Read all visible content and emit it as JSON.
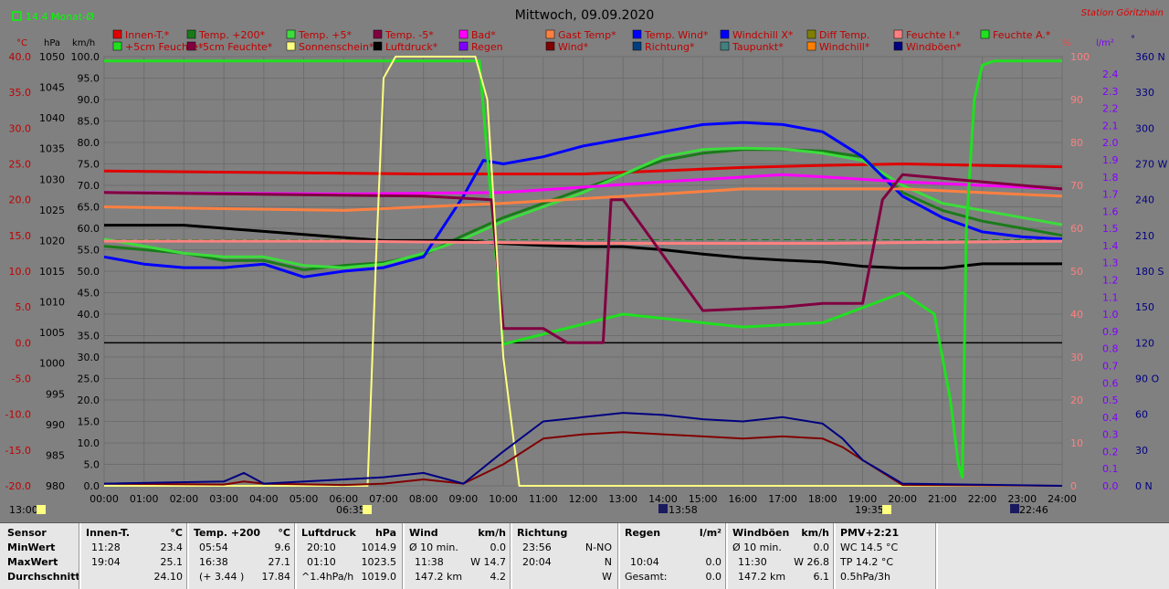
{
  "header": {
    "left_label": "14.4 Monat-Ø",
    "title": "Mittwoch, 09.09.2020",
    "station": "Station Göritzhain"
  },
  "legend": [
    {
      "label": "Innen-T.*",
      "color": "#e00000"
    },
    {
      "label": "Temp. +200*",
      "color": "#1a7a1a"
    },
    {
      "label": "Temp. +5*",
      "color": "#3cdc3c"
    },
    {
      "label": "Temp. -5*",
      "color": "#800040"
    },
    {
      "label": "Bad*",
      "color": "#ff00ff"
    },
    {
      "label": "Gast Temp*",
      "color": "#ff8040"
    },
    {
      "label": "Temp. Wind*",
      "color": "#0000ff"
    },
    {
      "label": "Windchill X*",
      "color": "#0000ff"
    },
    {
      "label": "Diff Temp.",
      "color": "#808000"
    },
    {
      "label": "Feuchte I.*",
      "color": "#ff8080"
    },
    {
      "label": "Feuchte A.*",
      "color": "#20e020"
    },
    {
      "label": "+5cm Feuchte*",
      "color": "#20e020"
    },
    {
      "label": "-5cm Feuchte*",
      "color": "#800040"
    },
    {
      "label": "Sonnenschein*",
      "color": "#ffff80"
    },
    {
      "label": "Luftdruck*",
      "color": "#000000"
    },
    {
      "label": "Regen",
      "color": "#8000ff"
    },
    {
      "label": "Wind*",
      "color": "#800000"
    },
    {
      "label": "Richtung*",
      "color": "#004080"
    },
    {
      "label": "Taupunkt*",
      "color": "#408080"
    },
    {
      "label": "Windchill*",
      "color": "#ff8000"
    },
    {
      "label": "Windböen*",
      "color": "#000080"
    }
  ],
  "axis_units": {
    "temp": "°C",
    "press": "hPa",
    "wind": "km/h",
    "hum": "%",
    "rain": "l/m²",
    "dir": "°"
  },
  "axis_ticks": {
    "temp": [
      "40.0",
      "35.0",
      "30.0",
      "25.0",
      "20.0",
      "15.0",
      "10.0",
      "5.0",
      "0.0",
      "-5.0",
      "-10.0",
      "-15.0",
      "-20.0"
    ],
    "press": [
      "1050",
      "1045",
      "1040",
      "1035",
      "1030",
      "1025",
      "1020",
      "1015",
      "1010",
      "1005",
      "1000",
      "995",
      "990",
      "985",
      "980"
    ],
    "wind": [
      "100.0",
      "95.0",
      "90.0",
      "85.0",
      "80.0",
      "75.0",
      "70.0",
      "65.0",
      "60.0",
      "55.0",
      "50.0",
      "45.0",
      "40.0",
      "35.0",
      "30.0",
      "25.0",
      "20.0",
      "15.0",
      "10.0",
      "5.0",
      "0.0"
    ],
    "hum": [
      "100",
      "90",
      "80",
      "70",
      "60",
      "50",
      "40",
      "30",
      "20",
      "10",
      "0"
    ],
    "rain": [
      "2.4",
      "2.3",
      "2.2",
      "2.1",
      "2.0",
      "1.9",
      "1.8",
      "1.7",
      "1.6",
      "1.5",
      "1.4",
      "1.3",
      "1.2",
      "1.1",
      "1.0",
      "0.9",
      "0.8",
      "0.7",
      "0.6",
      "0.5",
      "0.4",
      "0.3",
      "0.2",
      "0.1",
      "0.0"
    ],
    "dir": [
      "360 N",
      "330",
      "300",
      "270 W",
      "240",
      "210",
      "180 S",
      "150",
      "120",
      "90 O",
      "60",
      "30",
      "0 N"
    ]
  },
  "x_ticks": [
    "00:00",
    "01:00",
    "02:00",
    "03:00",
    "04:00",
    "05:00",
    "06:00",
    "07:00",
    "08:00",
    "09:00",
    "10:00",
    "11:00",
    "12:00",
    "13:00",
    "14:00",
    "15:00",
    "16:00",
    "17:00",
    "18:00",
    "19:00",
    "20:00",
    "21:00",
    "22:00",
    "23:00",
    "24:00"
  ],
  "events": {
    "left_time": "13:00",
    "sunrise": "06:35",
    "noon": "13:58",
    "sunset": "19:35",
    "moon": "22:46"
  },
  "chart_data": {
    "type": "line",
    "x_unit": "hour of day",
    "xlim": [
      0,
      24
    ],
    "ylim": [
      -20,
      40
    ],
    "ylabel": "°C",
    "series": [
      {
        "name": "Innen-T.*",
        "axis": "temp",
        "color": "#e00000",
        "x": [
          0,
          4,
          8,
          12,
          16,
          18,
          20,
          22,
          24
        ],
        "y": [
          24.0,
          23.8,
          23.6,
          23.6,
          24.5,
          24.8,
          25.0,
          24.8,
          24.6
        ]
      },
      {
        "name": "Temp. +200*",
        "axis": "temp",
        "color": "#1a7a1a",
        "x": [
          0,
          1,
          2,
          3,
          4,
          5,
          6,
          7,
          8,
          9,
          10,
          11,
          12,
          13,
          14,
          15,
          16,
          17,
          18,
          19,
          20,
          21,
          22,
          23,
          24
        ],
        "y": [
          13.5,
          13.0,
          12.5,
          11.5,
          11.5,
          10.2,
          10.8,
          11.2,
          12.3,
          15.0,
          17.5,
          19.5,
          21.5,
          23.5,
          25.5,
          26.5,
          27.0,
          27.0,
          26.8,
          26.0,
          21.0,
          18.5,
          17.0,
          16.0,
          15.0
        ]
      },
      {
        "name": "Temp. +5*",
        "axis": "temp",
        "color": "#3cdc3c",
        "x": [
          0,
          1,
          2,
          3,
          4,
          5,
          6,
          7,
          8,
          9,
          10,
          11,
          12,
          13,
          14,
          15,
          16,
          17,
          18,
          19,
          20,
          21,
          22,
          23,
          24
        ],
        "y": [
          14.5,
          13.5,
          12.5,
          12.0,
          12.0,
          10.8,
          10.5,
          11.0,
          12.5,
          14.5,
          17.0,
          19.0,
          21.0,
          23.5,
          26.0,
          27.0,
          27.2,
          27.1,
          26.5,
          25.5,
          22.0,
          19.5,
          18.5,
          17.5,
          16.5
        ]
      },
      {
        "name": "Temp. Wind*",
        "axis": "temp",
        "color": "#0000ff",
        "x": [
          0,
          1,
          2,
          3,
          4,
          5,
          6,
          7,
          8,
          9,
          9.5,
          10,
          11,
          12,
          13,
          14,
          15,
          16,
          17,
          18,
          19,
          20,
          21,
          22,
          23,
          24
        ],
        "y": [
          12.0,
          11.0,
          10.5,
          10.5,
          11.0,
          9.2,
          10.0,
          10.5,
          12.0,
          20.5,
          25.5,
          25.0,
          26.0,
          27.5,
          28.5,
          29.5,
          30.5,
          30.8,
          30.5,
          29.5,
          26.0,
          20.5,
          17.5,
          15.5,
          14.8,
          14.5
        ]
      },
      {
        "name": "Bad*",
        "axis": "temp",
        "color": "#ff00ff",
        "x": [
          0,
          6,
          10,
          14,
          17,
          18,
          20,
          24
        ],
        "y": [
          21.0,
          20.8,
          21.0,
          22.5,
          23.5,
          23.2,
          22.5,
          21.5
        ]
      },
      {
        "name": "Gast Temp*",
        "axis": "temp",
        "color": "#ff8040",
        "x": [
          0,
          6,
          10,
          14,
          16,
          18,
          20,
          24
        ],
        "y": [
          19.0,
          18.5,
          19.5,
          20.8,
          21.5,
          21.5,
          21.5,
          20.5
        ]
      },
      {
        "name": "Luftdruck*",
        "axis": "press",
        "color": "#000000",
        "x": [
          0,
          2,
          3,
          4,
          5,
          6,
          7,
          8,
          9,
          10,
          11,
          12,
          13,
          14,
          15,
          16,
          17,
          18,
          19,
          20,
          21,
          22,
          23,
          24
        ],
        "y": [
          1022.5,
          1022.5,
          1022.0,
          1021.5,
          1021.0,
          1020.5,
          1020.0,
          1020.0,
          1020.0,
          1019.5,
          1019.2,
          1019.0,
          1019.0,
          1018.5,
          1017.8,
          1017.2,
          1016.8,
          1016.5,
          1015.8,
          1015.5,
          1015.5,
          1016.2,
          1016.2,
          1016.2
        ]
      },
      {
        "name": "Feuchte I.*",
        "axis": "hum",
        "color": "#ff8080",
        "x": [
          0,
          6,
          12,
          18,
          24
        ],
        "y": [
          57,
          57,
          56.5,
          56.5,
          57
        ]
      },
      {
        "name": "Feuchte A.*",
        "axis": "hum",
        "color": "#20e020",
        "x": [
          0,
          9.3,
          9.4,
          10.0,
          13,
          16,
          18,
          20,
          20.8,
          21.2,
          21.4,
          21.5,
          21.6,
          21.8,
          22.0,
          22.3,
          24
        ],
        "y": [
          99,
          99,
          99,
          33,
          40,
          37,
          38,
          45,
          40,
          20,
          5,
          2,
          60,
          90,
          98,
          99,
          99
        ]
      },
      {
        "name": "Temp. -5*",
        "axis": "temp",
        "color": "#800040",
        "x": [
          0,
          8,
          9.7,
          10.0,
          11,
          11.6,
          12.5,
          12.7,
          13.0,
          15,
          17,
          18,
          19,
          19.5,
          20,
          21,
          24
        ],
        "y": [
          21.0,
          20.5,
          20.0,
          2.0,
          2.0,
          0.0,
          0.0,
          20.0,
          20.0,
          4.5,
          5.0,
          5.5,
          5.5,
          20.0,
          23.5,
          23.0,
          21.5
        ]
      },
      {
        "name": "Sonnenschein*",
        "axis": "wind",
        "color": "#ffff80",
        "x": [
          0,
          6.6,
          6.8,
          7.0,
          7.3,
          9.3,
          9.6,
          10.0,
          10.4,
          24
        ],
        "y": [
          0,
          0,
          50,
          95,
          100,
          100,
          90,
          30,
          0,
          0
        ]
      },
      {
        "name": "Wind*",
        "axis": "wind",
        "color": "#800000",
        "x": [
          0,
          3,
          3.5,
          4,
          6,
          7,
          8,
          9,
          10,
          11,
          12,
          13,
          14,
          15,
          16,
          17,
          18,
          18.5,
          19,
          20,
          24
        ],
        "y": [
          0.5,
          0.3,
          1.0,
          0.5,
          0.2,
          0.5,
          1.5,
          0.5,
          5.0,
          11.0,
          12.0,
          12.5,
          12.0,
          11.5,
          11.0,
          11.5,
          11.0,
          9.0,
          6.0,
          0.2,
          0.0
        ]
      },
      {
        "name": "Windböen*",
        "axis": "wind",
        "color": "#000080",
        "x": [
          0,
          3,
          3.5,
          4,
          6,
          7,
          8,
          9,
          10,
          11,
          12,
          13,
          14,
          15,
          16,
          17,
          18,
          18.5,
          19,
          20,
          24
        ],
        "y": [
          0.5,
          1.0,
          3.0,
          0.5,
          1.5,
          2.0,
          3.0,
          0.5,
          8.0,
          15.0,
          16.0,
          17.0,
          16.5,
          15.5,
          15.0,
          16.0,
          14.5,
          11.0,
          6.0,
          0.5,
          0.0
        ]
      }
    ]
  },
  "stats": {
    "sensor": {
      "hdr": "Sensor",
      "rows": [
        "MinWert",
        "MaxWert",
        "Durchschnitt"
      ]
    },
    "innen": {
      "hdr": "Innen-T.",
      "unit": "°C",
      "r1a": "11:28",
      "r1b": "23.4",
      "r2a": "19:04",
      "r2b": "25.1",
      "r3a": "",
      "r3b": "24.10"
    },
    "temp200": {
      "hdr": "Temp. +200",
      "unit": "°C",
      "r1a": "05:54",
      "r1b": "9.6",
      "r2a": "16:38",
      "r2b": "27.1",
      "r3a": "(+ 3.44 )",
      "r3b": "17.84"
    },
    "luft": {
      "hdr": "Luftdruck",
      "unit": "hPa",
      "r1a": "20:10",
      "r1b": "1014.9",
      "r2a": "01:10",
      "r2b": "1023.5",
      "r3a": "^1.4hPa/h",
      "r3b": "1019.0"
    },
    "wind": {
      "hdr": "Wind",
      "unit": "km/h",
      "r1a": "Ø 10 min.",
      "r1b": "0.0",
      "r2a": "11:38",
      "r2b": "W 14.7",
      "r3a": "147.2 km",
      "r3b": "4.2"
    },
    "richtung": {
      "hdr": "Richtung",
      "unit": "",
      "r1a": "23:56",
      "r1b": "N-NO",
      "r2a": "20:04",
      "r2b": "N",
      "r3a": "",
      "r3b": "W"
    },
    "regen": {
      "hdr": "Regen",
      "unit": "l/m²",
      "r1a": "",
      "r1b": "",
      "r2a": "10:04",
      "r2b": "0.0",
      "r3a": "Gesamt:",
      "r3b": "0.0"
    },
    "boeen": {
      "hdr": "Windböen",
      "unit": "km/h",
      "r1a": "Ø 10 min.",
      "r1b": "0.0",
      "r2a": "11:30",
      "r2b": "W 26.8",
      "r3a": "147.2 km",
      "r3b": "6.1"
    },
    "pmv": {
      "hdr": "PMV+2:21",
      "r1": "WC 14.5 °C",
      "r2": "TP 14.2 °C",
      "r3": "0.5hPa/3h"
    }
  }
}
